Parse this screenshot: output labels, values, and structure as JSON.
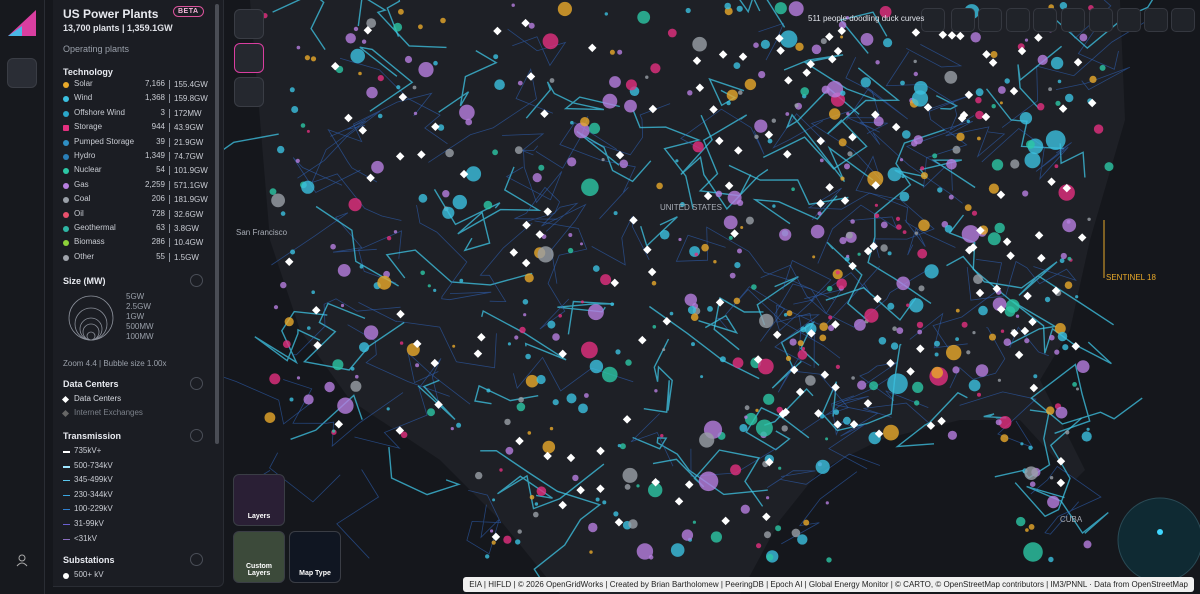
{
  "sidebar": {
    "title": "US Power Plants",
    "badge": "BETA",
    "summary": "13,700 plants | 1,359.1GW",
    "subtitle": "Operating plants",
    "technology": {
      "heading": "Technology",
      "items": [
        {
          "name": "Solar",
          "count": "7,166",
          "capacity": "155.4GW",
          "color": "#e8a92a"
        },
        {
          "name": "Wind",
          "count": "1,368",
          "capacity": "159.8GW",
          "color": "#3bc0e0"
        },
        {
          "name": "Offshore Wind",
          "count": "3",
          "capacity": "172MW",
          "color": "#2aa6c9"
        },
        {
          "name": "Storage",
          "count": "944",
          "capacity": "43.9GW",
          "color": "#e3307f"
        },
        {
          "name": "Pumped Storage",
          "count": "39",
          "capacity": "21.9GW",
          "color": "#2f8fc4"
        },
        {
          "name": "Hydro",
          "count": "1,349",
          "capacity": "74.7GW",
          "color": "#2a7fb8"
        },
        {
          "name": "Nuclear",
          "count": "54",
          "capacity": "101.9GW",
          "color": "#2cc7a5"
        },
        {
          "name": "Gas",
          "count": "2,259",
          "capacity": "571.1GW",
          "color": "#b77ee0"
        },
        {
          "name": "Coal",
          "count": "206",
          "capacity": "181.9GW",
          "color": "#9aa0a8"
        },
        {
          "name": "Oil",
          "count": "728",
          "capacity": "32.6GW",
          "color": "#e8506c"
        },
        {
          "name": "Geothermal",
          "count": "63",
          "capacity": "3.8GW",
          "color": "#2fb6a5"
        },
        {
          "name": "Biomass",
          "count": "286",
          "capacity": "10.4GW",
          "color": "#8dd13a"
        },
        {
          "name": "Other",
          "count": "55",
          "capacity": "1.5GW",
          "color": "#a0a4ac"
        }
      ]
    },
    "size": {
      "heading": "Size (MW)",
      "labels": [
        "5GW",
        "2.5GW",
        "1GW",
        "500MW",
        "100MW"
      ],
      "zoom": "Zoom 4.4 | Bubble size 1.00x"
    },
    "data_centers": {
      "heading": "Data Centers",
      "items": [
        "Data Centers",
        "Internet Exchanges"
      ]
    },
    "transmission": {
      "heading": "Transmission",
      "items": [
        {
          "label": "735kV+",
          "color": "#ffffff"
        },
        {
          "label": "500-734kV",
          "color": "#9fe6ff"
        },
        {
          "label": "345-499kV",
          "color": "#5cc8ee"
        },
        {
          "label": "230-344kV",
          "color": "#3aa6e0"
        },
        {
          "label": "100-229kV",
          "color": "#2f7fd0"
        },
        {
          "label": "31-99kV",
          "color": "#6a5fd0"
        },
        {
          "label": "<31kV",
          "color": "#8a6fc0"
        }
      ]
    },
    "substations": {
      "heading": "Substations",
      "items": [
        "500+ kV"
      ]
    }
  },
  "map": {
    "banner": "511 people doodling duck curves",
    "labels": [
      {
        "text": "San Francisco"
      },
      {
        "text": "UNITED STATES"
      },
      {
        "text": "SENTINEL 18"
      },
      {
        "text": "CUBA"
      }
    ],
    "tiles": [
      "Layers",
      "Custom Layers",
      "Map Type"
    ],
    "attribution": "EIA | HIFLD | © 2026 OpenGridWorks | Created by Brian Bartholomew | PeeringDB | Epoch AI | Global Energy Monitor | © CARTO, © OpenStreetMap contributors | IM3/PNNL · Data from OpenStreetMap"
  }
}
